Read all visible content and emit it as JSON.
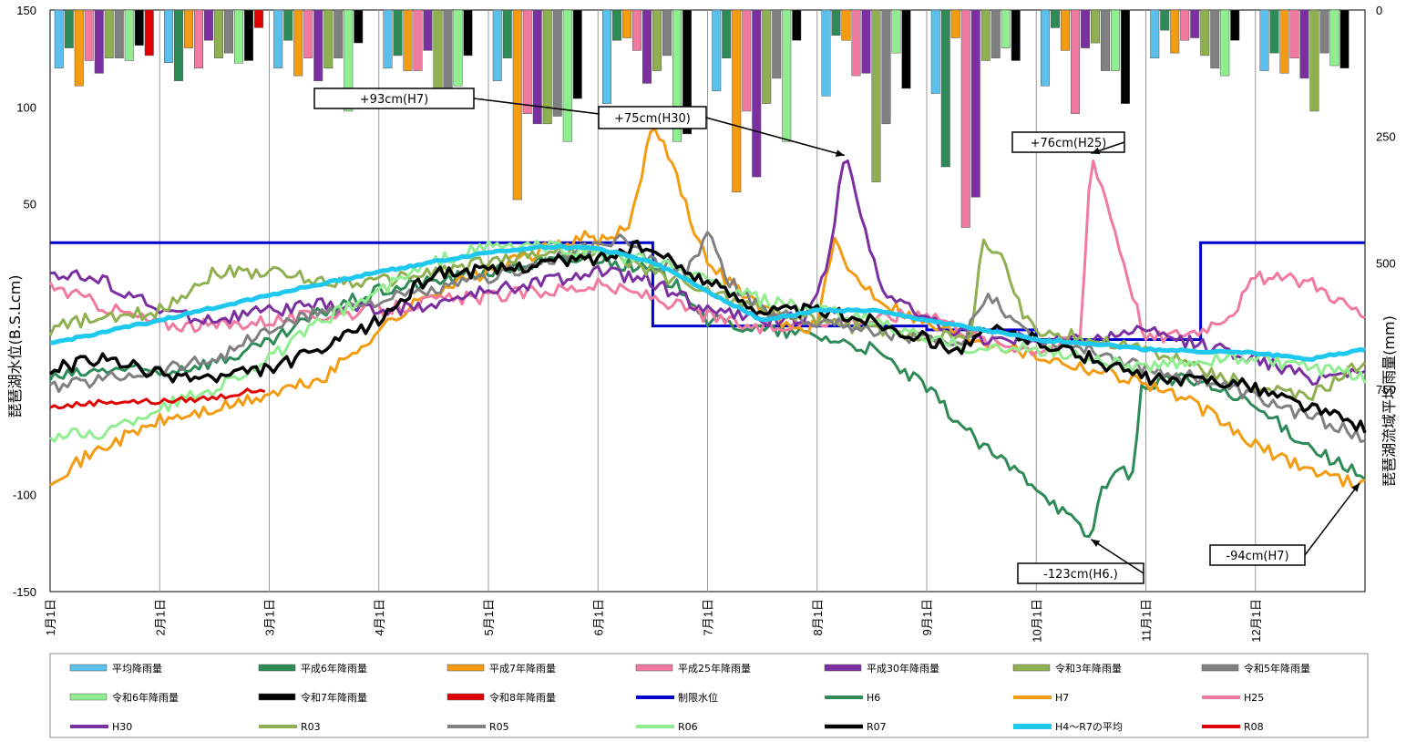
{
  "chart_data": {
    "type": "line",
    "ylabel_left": "琵琶湖水位(B.S.Lcm)",
    "ylabel_right": "琵琶湖流域平均雨量(mm)",
    "ylim_left": [
      -150,
      150
    ],
    "yticks_left": [
      "150",
      "100",
      "50",
      "",
      "-100",
      "-150"
    ],
    "ylim_right": [
      1150,
      0
    ],
    "yticks_right": [
      "0",
      "250",
      "500",
      "750"
    ],
    "months": [
      "1月1日",
      "2月1日",
      "3月1日",
      "4月1日",
      "5月1日",
      "6月1日",
      "7月1日",
      "8月1日",
      "9月1日",
      "10月1日",
      "11月1日",
      "12月1日"
    ],
    "rain_series": [
      {
        "name": "平均降雨量",
        "color": "#5bc0eb",
        "values": [
          115,
          104,
          115,
          115,
          140,
          185,
          160,
          170,
          165,
          150,
          95,
          120
        ]
      },
      {
        "name": "平成6年降雨量",
        "color": "#2e8b57",
        "values": [
          75,
          140,
          60,
          90,
          95,
          60,
          95,
          50,
          310,
          35,
          40,
          85
        ]
      },
      {
        "name": "平成7年降雨量",
        "color": "#f39c12",
        "values": [
          150,
          75,
          130,
          120,
          375,
          55,
          360,
          60,
          55,
          80,
          85,
          125
        ]
      },
      {
        "name": "平成25年降雨量",
        "color": "#f07aa0",
        "values": [
          100,
          115,
          95,
          120,
          205,
          80,
          200,
          130,
          430,
          205,
          60,
          95
        ]
      },
      {
        "name": "平成30年降雨量",
        "color": "#7b2fa0",
        "values": [
          125,
          60,
          140,
          80,
          225,
          145,
          330,
          125,
          370,
          75,
          55,
          135
        ]
      },
      {
        "name": "令和3年降雨量",
        "color": "#8fb050",
        "values": [
          95,
          95,
          115,
          155,
          225,
          120,
          185,
          340,
          100,
          65,
          90,
          200
        ]
      },
      {
        "name": "令和5年降雨量",
        "color": "#808080",
        "values": [
          95,
          85,
          95,
          160,
          210,
          90,
          135,
          225,
          95,
          120,
          115,
          85
        ]
      },
      {
        "name": "令和6年降雨量",
        "color": "#90ee90",
        "values": [
          100,
          105,
          200,
          150,
          260,
          260,
          260,
          85,
          75,
          120,
          130,
          110
        ]
      },
      {
        "name": "令和7年降雨量",
        "color": "#000000",
        "values": [
          70,
          100,
          65,
          90,
          175,
          245,
          60,
          155,
          100,
          185,
          60,
          115
        ]
      },
      {
        "name": "令和8年降雨量",
        "color": "#e00000",
        "values": [
          90,
          35,
          0,
          0,
          0,
          0,
          0,
          0,
          0,
          0,
          0,
          0
        ]
      }
    ],
    "level_series": [
      {
        "name": "制限水位",
        "color": "#0000cc",
        "width": 3
      },
      {
        "name": "H6",
        "color": "#2e8b57",
        "width": 3
      },
      {
        "name": "H7",
        "color": "#f39c12",
        "width": 3
      },
      {
        "name": "H25",
        "color": "#f07aa0",
        "width": 3
      },
      {
        "name": "H30",
        "color": "#7b2fa0",
        "width": 3
      },
      {
        "name": "R03",
        "color": "#8fb050",
        "width": 3
      },
      {
        "name": "R05",
        "color": "#808080",
        "width": 3
      },
      {
        "name": "R06",
        "color": "#90ee90",
        "width": 3
      },
      {
        "name": "R07",
        "color": "#000000",
        "width": 3.5
      },
      {
        "name": "H4～R7の平均",
        "color": "#1ec8ef",
        "width": 5
      },
      {
        "name": "R08",
        "color": "#e00000",
        "width": 3
      }
    ],
    "annotations": [
      {
        "text": "+93cm(H7)",
        "x": 5.5,
        "y": 93,
        "bx": 345,
        "by": 97,
        "bw": 175,
        "bh": 22
      },
      {
        "text": "+75cm(H30)",
        "x": 7.25,
        "y": 75,
        "bx": 657,
        "by": 117,
        "bw": 118,
        "bh": 24
      },
      {
        "text": "+76cm(H25)",
        "x": 9.5,
        "y": 76,
        "bx": 1111,
        "by": 145,
        "bw": 123,
        "bh": 22
      },
      {
        "text": "-123cm(H6.)",
        "x": 9.5,
        "y": -123,
        "bx": 1117,
        "by": 618,
        "bw": 138,
        "bh": 22
      },
      {
        "text": "-94cm(H7)",
        "x": 11.95,
        "y": -94,
        "bx": 1328,
        "by": 598,
        "bw": 104,
        "bh": 22
      }
    ]
  }
}
